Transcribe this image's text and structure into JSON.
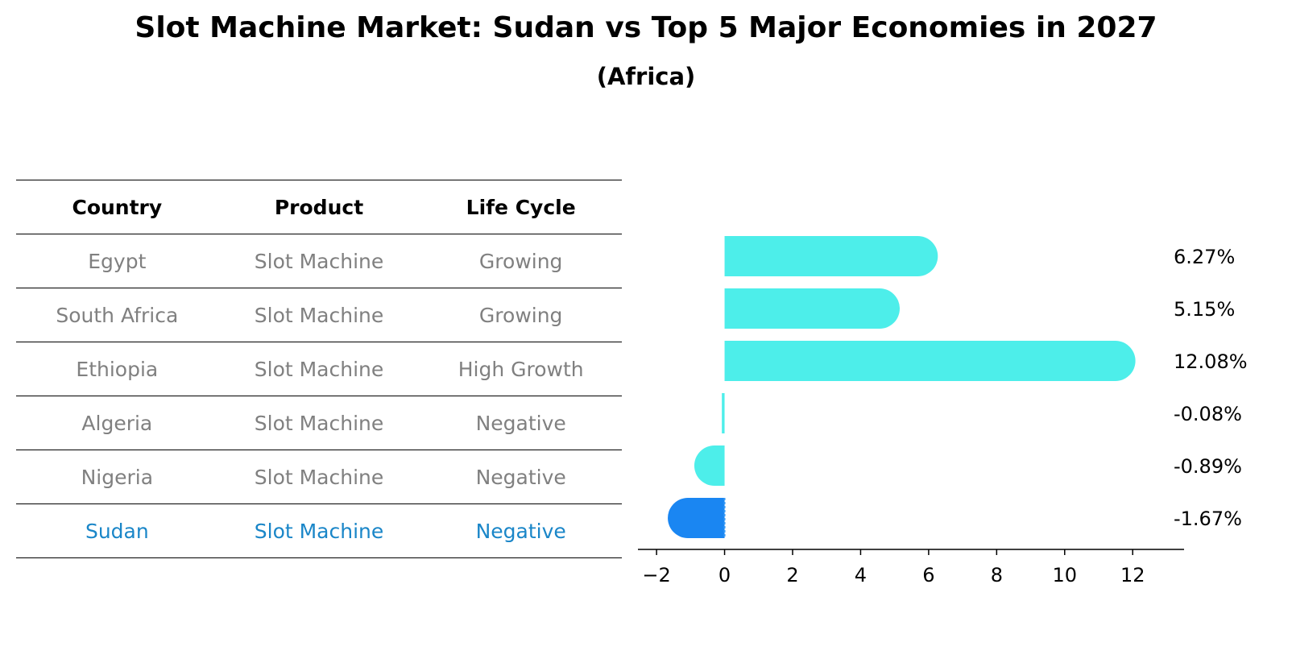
{
  "title": "Slot Machine Market: Sudan vs Top 5 Major Economies in 2027",
  "subtitle": "(Africa)",
  "table": {
    "headers": [
      "Country",
      "Product",
      "Life Cycle"
    ],
    "rows": [
      [
        "Egypt",
        "Slot Machine",
        "Growing"
      ],
      [
        "South Africa",
        "Slot Machine",
        "Growing"
      ],
      [
        "Ethiopia",
        "Slot Machine",
        "High Growth"
      ],
      [
        "Algeria",
        "Slot Machine",
        "Negative"
      ],
      [
        "Nigeria",
        "Slot Machine",
        "Negative"
      ],
      [
        "Sudan",
        "Slot Machine",
        "Negative"
      ]
    ],
    "highlight_row": 5
  },
  "colors": {
    "bar": "#4deeea",
    "highlight": "#1a86f2",
    "muted_text": "#808080",
    "highlight_text": "#1a86c8"
  },
  "chart_data": {
    "type": "bar",
    "orientation": "horizontal",
    "categories": [
      "Egypt",
      "South Africa",
      "Ethiopia",
      "Algeria",
      "Nigeria",
      "Sudan"
    ],
    "values": [
      6.27,
      5.15,
      12.08,
      -0.08,
      -0.89,
      -1.67
    ],
    "labels": [
      "6.27%",
      "5.15%",
      "12.08%",
      "-0.08%",
      "-0.89%",
      "-1.67%"
    ],
    "xlim": [
      -2.5,
      12.8
    ],
    "xticks": [
      -2,
      0,
      2,
      4,
      6,
      8,
      10,
      12
    ],
    "xtick_labels": [
      "−2",
      "0",
      "2",
      "4",
      "6",
      "8",
      "10",
      "12"
    ],
    "highlight": "Sudan"
  }
}
